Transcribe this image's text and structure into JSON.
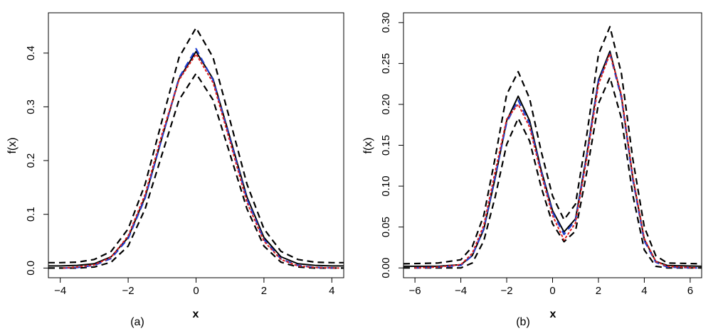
{
  "chart_data": [
    {
      "type": "line",
      "panel_label": "(a)",
      "xlabel": "x",
      "ylabel": "f(x)",
      "xlim": [
        -4.35,
        4.35
      ],
      "ylim": [
        -0.018,
        0.475
      ],
      "xticks": [
        -4,
        -2,
        0,
        2,
        4
      ],
      "yticks": [
        0.0,
        0.1,
        0.2,
        0.3,
        0.4
      ],
      "ytick_labels": [
        "0.0",
        "0.1",
        "0.2",
        "0.3",
        "0.4"
      ],
      "grid": false,
      "series": [
        {
          "style": "solid",
          "color": "#000000",
          "x": [
            -4.35,
            -4,
            -3.5,
            -3,
            -2.5,
            -2,
            -1.5,
            -1,
            -0.5,
            0,
            0.5,
            1,
            1.5,
            2,
            2.5,
            3,
            3.5,
            4,
            4.35
          ],
          "y": [
            0.004,
            0.004,
            0.005,
            0.008,
            0.021,
            0.057,
            0.132,
            0.243,
            0.352,
            0.403,
            0.352,
            0.243,
            0.132,
            0.057,
            0.021,
            0.008,
            0.005,
            0.004,
            0.004
          ]
        },
        {
          "style": "dashed",
          "color": "#000000",
          "x": [
            -4.35,
            -4,
            -3.5,
            -3,
            -2.5,
            -2,
            -1.5,
            -1,
            -0.5,
            0,
            0.5,
            1,
            1.5,
            2,
            2.5,
            3,
            3.5,
            4,
            4.35
          ],
          "y": [
            0.01,
            0.01,
            0.011,
            0.016,
            0.031,
            0.073,
            0.156,
            0.275,
            0.392,
            0.447,
            0.392,
            0.275,
            0.156,
            0.073,
            0.031,
            0.016,
            0.011,
            0.01,
            0.01
          ]
        },
        {
          "style": "dashed",
          "color": "#000000",
          "x": [
            -4.35,
            -4,
            -3.5,
            -3,
            -2.5,
            -2,
            -1.5,
            -1,
            -0.5,
            0,
            0.5,
            1,
            1.5,
            2,
            2.5,
            3,
            3.5,
            4,
            4.35
          ],
          "y": [
            0.0,
            0.0,
            0.0,
            0.002,
            0.011,
            0.041,
            0.11,
            0.212,
            0.313,
            0.362,
            0.313,
            0.212,
            0.11,
            0.041,
            0.011,
            0.002,
            0.0,
            0.0,
            0.0
          ]
        },
        {
          "style": "dashed",
          "color": "#1f3fd0",
          "x": [
            -3.9,
            -3.5,
            -3,
            -2.5,
            -2,
            -1.5,
            -1,
            -0.5,
            0,
            0.5,
            1,
            1.5,
            2,
            2.5,
            3,
            3.5,
            4.2
          ],
          "y": [
            0.0,
            0.001,
            0.005,
            0.018,
            0.055,
            0.13,
            0.243,
            0.354,
            0.408,
            0.35,
            0.24,
            0.128,
            0.053,
            0.017,
            0.005,
            0.001,
            0.0
          ]
        },
        {
          "style": "dotted",
          "color": "#e02020",
          "x": [
            -3.9,
            -3.5,
            -3,
            -2.5,
            -2,
            -1.5,
            -1,
            -0.5,
            0,
            0.5,
            1,
            1.5,
            2,
            2.5,
            3,
            3.5,
            4.2
          ],
          "y": [
            0.0,
            0.002,
            0.006,
            0.02,
            0.06,
            0.137,
            0.25,
            0.35,
            0.398,
            0.345,
            0.235,
            0.122,
            0.05,
            0.016,
            0.004,
            0.001,
            0.0
          ]
        }
      ]
    },
    {
      "type": "line",
      "panel_label": "(b)",
      "xlabel": "x",
      "ylabel": "f(x)",
      "xlim": [
        -6.5,
        6.5
      ],
      "ylim": [
        -0.012,
        0.312
      ],
      "xticks": [
        -6,
        -4,
        -2,
        0,
        2,
        4,
        6
      ],
      "yticks": [
        0.0,
        0.05,
        0.1,
        0.15,
        0.2,
        0.25,
        0.3
      ],
      "ytick_labels": [
        "0.00",
        "0.05",
        "0.10",
        "0.15",
        "0.20",
        "0.25",
        "0.30"
      ],
      "grid": false,
      "series": [
        {
          "style": "solid",
          "color": "#000000",
          "x": [
            -6.5,
            -5,
            -4,
            -3.5,
            -3,
            -2.5,
            -2,
            -1.5,
            -1,
            -0.5,
            0,
            0.5,
            1,
            1.5,
            2,
            2.5,
            3,
            3.5,
            4,
            4.5,
            5,
            6.5
          ],
          "y": [
            0.002,
            0.002,
            0.004,
            0.015,
            0.047,
            0.11,
            0.18,
            0.21,
            0.18,
            0.12,
            0.07,
            0.044,
            0.06,
            0.14,
            0.23,
            0.265,
            0.21,
            0.11,
            0.035,
            0.008,
            0.003,
            0.002
          ]
        },
        {
          "style": "dashed",
          "color": "#000000",
          "x": [
            -6.5,
            -5,
            -4,
            -3.5,
            -3,
            -2.5,
            -2,
            -1.5,
            -1,
            -0.5,
            0,
            0.5,
            1,
            1.5,
            2,
            2.5,
            3,
            3.5,
            4,
            4.5,
            5,
            6.5
          ],
          "y": [
            0.005,
            0.006,
            0.01,
            0.026,
            0.064,
            0.135,
            0.212,
            0.24,
            0.207,
            0.143,
            0.088,
            0.059,
            0.078,
            0.164,
            0.261,
            0.295,
            0.238,
            0.133,
            0.05,
            0.015,
            0.006,
            0.005
          ]
        },
        {
          "style": "dashed",
          "color": "#000000",
          "x": [
            -6.5,
            -5,
            -4,
            -3.5,
            -3,
            -2.5,
            -2,
            -1.5,
            -1,
            -0.5,
            0,
            0.5,
            1,
            1.5,
            2,
            2.5,
            3,
            3.5,
            4,
            4.5,
            5,
            6.5
          ],
          "y": [
            0.0,
            0.0,
            0.0,
            0.006,
            0.033,
            0.087,
            0.151,
            0.183,
            0.155,
            0.099,
            0.054,
            0.032,
            0.045,
            0.118,
            0.201,
            0.233,
            0.183,
            0.089,
            0.022,
            0.002,
            0.0,
            0.0
          ]
        },
        {
          "style": "dashed",
          "color": "#1f3fd0",
          "x": [
            -6,
            -5,
            -4,
            -3.5,
            -3,
            -2.5,
            -2,
            -1.5,
            -1,
            -0.5,
            0,
            0.5,
            1,
            1.5,
            2,
            2.5,
            3,
            3.5,
            4,
            4.5,
            5,
            6.3
          ],
          "y": [
            0.0,
            0.001,
            0.003,
            0.015,
            0.048,
            0.112,
            0.178,
            0.205,
            0.176,
            0.118,
            0.068,
            0.041,
            0.058,
            0.138,
            0.228,
            0.262,
            0.208,
            0.108,
            0.033,
            0.007,
            0.001,
            0.0
          ]
        },
        {
          "style": "dotted",
          "color": "#e02020",
          "x": [
            -6,
            -5,
            -4,
            -3.5,
            -3,
            -2.5,
            -2,
            -1.5,
            -1,
            -0.5,
            0,
            0.5,
            1,
            1.5,
            2,
            2.5,
            3,
            3.5,
            4,
            4.5,
            5,
            6.3
          ],
          "y": [
            0.0,
            0.001,
            0.004,
            0.018,
            0.052,
            0.118,
            0.182,
            0.2,
            0.172,
            0.115,
            0.064,
            0.034,
            0.055,
            0.135,
            0.224,
            0.262,
            0.212,
            0.112,
            0.036,
            0.008,
            0.002,
            0.0
          ]
        }
      ]
    }
  ]
}
